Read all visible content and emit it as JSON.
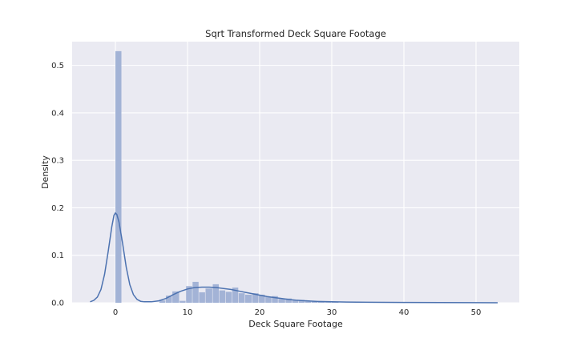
{
  "chart_data": {
    "type": "histogram",
    "title": "Sqrt Transformed Deck Square Footage",
    "xlabel": "Deck Square Footage",
    "ylabel": "Density",
    "xlim": [
      -6,
      56
    ],
    "ylim": [
      0,
      0.55
    ],
    "xticks": [
      0,
      10,
      20,
      30,
      40,
      50
    ],
    "yticks": [
      0.0,
      0.1,
      0.2,
      0.3,
      0.4,
      0.5
    ],
    "xtick_labels": [
      "0",
      "10",
      "20",
      "30",
      "40",
      "50"
    ],
    "ytick_labels": [
      "0.0",
      "0.1",
      "0.2",
      "0.3",
      "0.4",
      "0.5"
    ],
    "grid": true,
    "bar_color": "#a3b3d6",
    "kde_color": "#4c72b0",
    "background_color": "#eaeaf2",
    "bins": [
      {
        "x0": 0.0,
        "x1": 0.9,
        "density": 0.53
      },
      {
        "x0": 6.1,
        "x1": 7.0,
        "density": 0.005
      },
      {
        "x0": 7.0,
        "x1": 7.9,
        "density": 0.015
      },
      {
        "x0": 7.9,
        "x1": 8.9,
        "density": 0.024
      },
      {
        "x0": 8.9,
        "x1": 9.8,
        "density": 0.004
      },
      {
        "x0": 9.8,
        "x1": 10.7,
        "density": 0.035
      },
      {
        "x0": 10.7,
        "x1": 11.6,
        "density": 0.044
      },
      {
        "x0": 11.6,
        "x1": 12.5,
        "density": 0.022
      },
      {
        "x0": 12.5,
        "x1": 13.5,
        "density": 0.03
      },
      {
        "x0": 13.5,
        "x1": 14.4,
        "density": 0.039
      },
      {
        "x0": 14.4,
        "x1": 15.3,
        "density": 0.026
      },
      {
        "x0": 15.3,
        "x1": 16.2,
        "density": 0.023
      },
      {
        "x0": 16.2,
        "x1": 17.1,
        "density": 0.032
      },
      {
        "x0": 17.1,
        "x1": 18.0,
        "density": 0.02
      },
      {
        "x0": 18.0,
        "x1": 19.0,
        "density": 0.017
      },
      {
        "x0": 19.0,
        "x1": 19.9,
        "density": 0.02
      },
      {
        "x0": 19.9,
        "x1": 20.8,
        "density": 0.017
      },
      {
        "x0": 20.8,
        "x1": 21.7,
        "density": 0.012
      },
      {
        "x0": 21.7,
        "x1": 22.6,
        "density": 0.014
      },
      {
        "x0": 22.6,
        "x1": 23.6,
        "density": 0.008
      },
      {
        "x0": 23.6,
        "x1": 24.5,
        "density": 0.009
      },
      {
        "x0": 24.5,
        "x1": 25.4,
        "density": 0.006
      },
      {
        "x0": 25.4,
        "x1": 26.3,
        "density": 0.006
      },
      {
        "x0": 26.3,
        "x1": 27.2,
        "density": 0.004
      },
      {
        "x0": 27.2,
        "x1": 28.1,
        "density": 0.003
      },
      {
        "x0": 28.1,
        "x1": 29.1,
        "density": 0.002
      },
      {
        "x0": 29.1,
        "x1": 30.0,
        "density": 0.001
      },
      {
        "x0": 30.0,
        "x1": 31.0,
        "density": 0.001
      }
    ],
    "kde": [
      [
        -3.5,
        0.002
      ],
      [
        -3.0,
        0.005
      ],
      [
        -2.5,
        0.012
      ],
      [
        -2.0,
        0.028
      ],
      [
        -1.5,
        0.06
      ],
      [
        -1.0,
        0.108
      ],
      [
        -0.5,
        0.16
      ],
      [
        -0.2,
        0.184
      ],
      [
        0.0,
        0.189
      ],
      [
        0.2,
        0.186
      ],
      [
        0.5,
        0.17
      ],
      [
        1.0,
        0.125
      ],
      [
        1.5,
        0.075
      ],
      [
        2.0,
        0.038
      ],
      [
        2.5,
        0.017
      ],
      [
        3.0,
        0.007
      ],
      [
        3.5,
        0.003
      ],
      [
        4.0,
        0.002
      ],
      [
        5.0,
        0.002
      ],
      [
        6.0,
        0.004
      ],
      [
        7.0,
        0.009
      ],
      [
        8.0,
        0.017
      ],
      [
        9.0,
        0.024
      ],
      [
        10.0,
        0.029
      ],
      [
        11.0,
        0.032
      ],
      [
        12.0,
        0.033
      ],
      [
        13.0,
        0.033
      ],
      [
        14.0,
        0.032
      ],
      [
        15.0,
        0.03
      ],
      [
        16.0,
        0.028
      ],
      [
        17.0,
        0.025
      ],
      [
        18.0,
        0.022
      ],
      [
        19.0,
        0.019
      ],
      [
        20.0,
        0.016
      ],
      [
        21.0,
        0.013
      ],
      [
        22.0,
        0.011
      ],
      [
        23.0,
        0.009
      ],
      [
        24.0,
        0.007
      ],
      [
        25.0,
        0.0055
      ],
      [
        26.0,
        0.0045
      ],
      [
        27.0,
        0.0035
      ],
      [
        28.0,
        0.0028
      ],
      [
        30.0,
        0.002
      ],
      [
        32.0,
        0.0015
      ],
      [
        35.0,
        0.001
      ],
      [
        40.0,
        0.0006
      ],
      [
        45.0,
        0.0004
      ],
      [
        50.0,
        0.0002
      ],
      [
        53.0,
        0.0001
      ]
    ]
  }
}
